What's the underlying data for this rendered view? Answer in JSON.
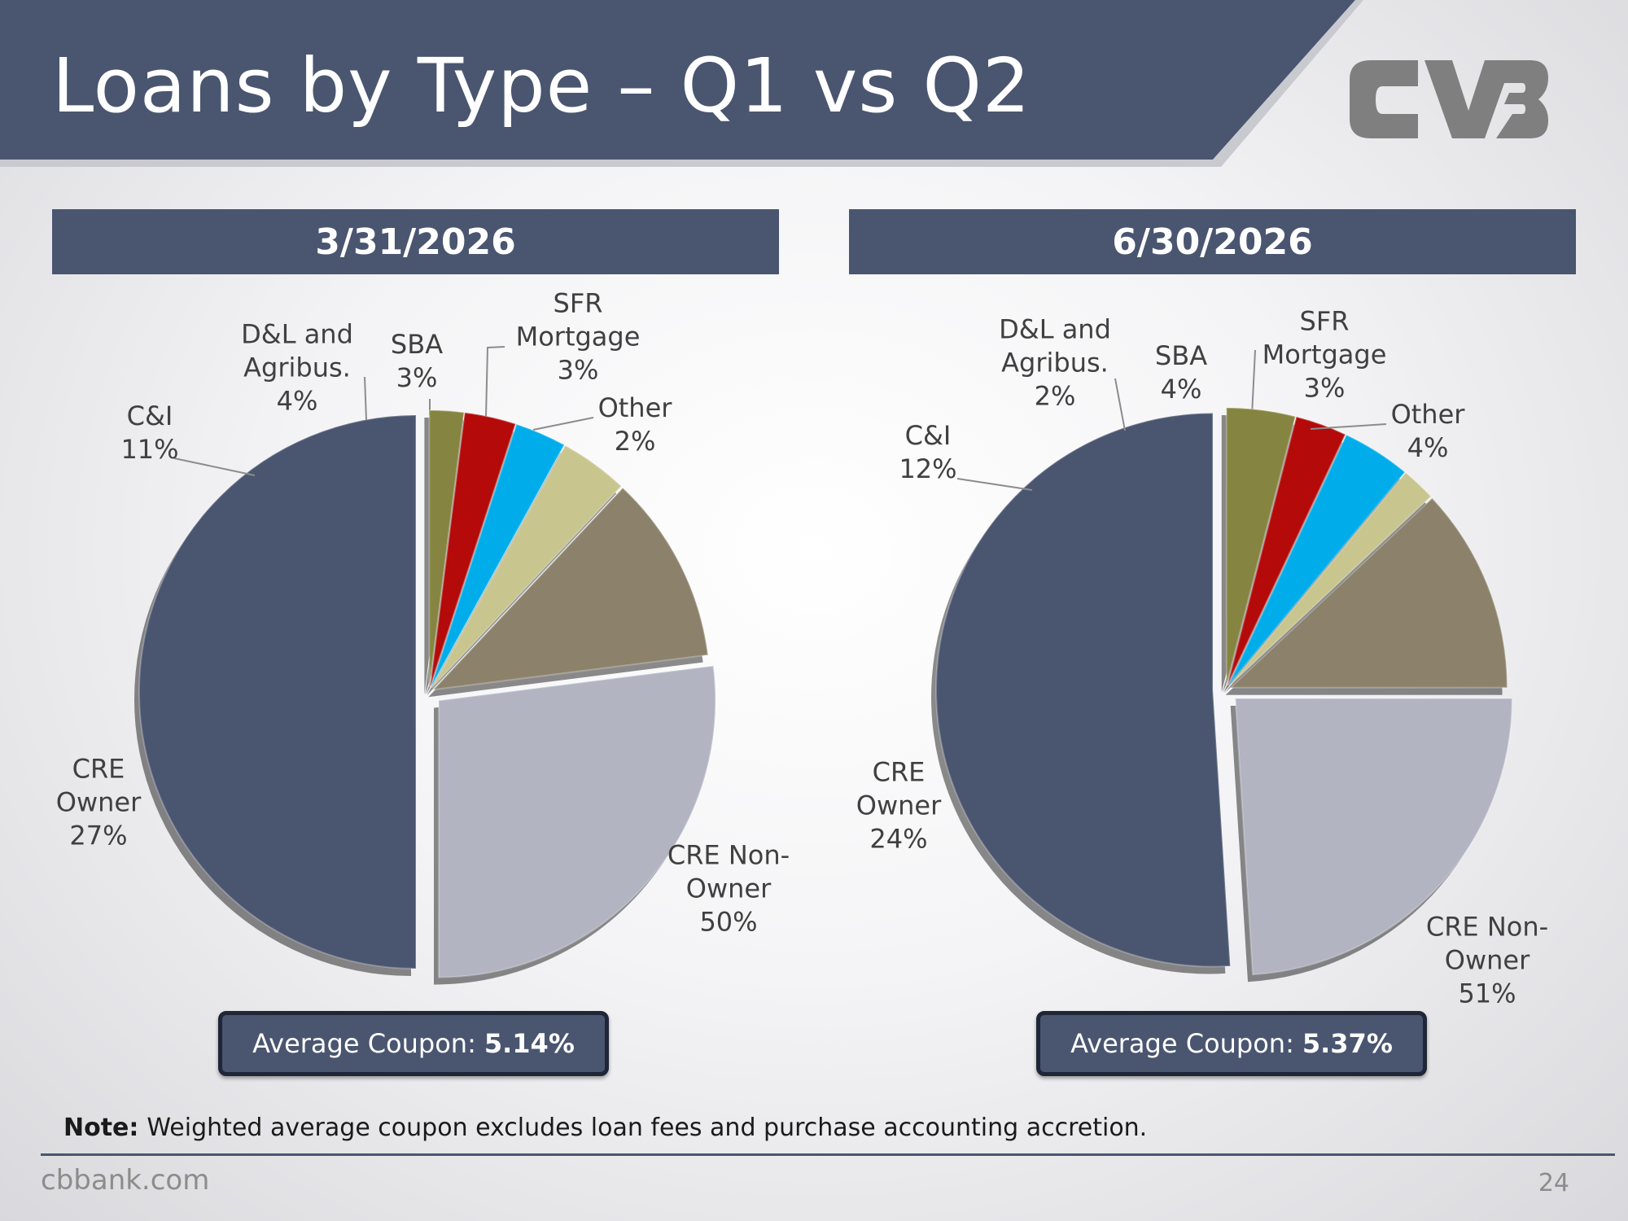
{
  "header": {
    "title": "Loans by Type – Q1 vs Q2"
  },
  "logo": {
    "name": "cvb-logo-mark",
    "color": "#7f7f7f"
  },
  "colors": {
    "header_band": "#4a5570",
    "cre_non_owner": "#4a5570",
    "cre_owner": "#b2b4c2",
    "c_and_i": "#8c826b",
    "dl_agribus": "#c9c58f",
    "sba": "#00adea",
    "sfr_mortgage": "#b40a0a",
    "other": "#858440"
  },
  "chart_data": [
    {
      "type": "pie",
      "title": "3/31/2026",
      "slices": [
        {
          "label": "CRE Non-Owner",
          "value": 50,
          "display": "CRE Non-\nOwner\n50%",
          "color": "#4a5570"
        },
        {
          "label": "CRE Owner",
          "value": 27,
          "display": "CRE\nOwner\n27%",
          "color": "#b2b4c2"
        },
        {
          "label": "C&I",
          "value": 11,
          "display": "C&I\n11%",
          "color": "#8c826b"
        },
        {
          "label": "D&L and Agribus.",
          "value": 4,
          "display": "D&L and\nAgribus.\n4%",
          "color": "#c9c58f"
        },
        {
          "label": "SBA",
          "value": 3,
          "display": "SBA\n3%",
          "color": "#00adea"
        },
        {
          "label": "SFR Mortgage",
          "value": 3,
          "display": "SFR\nMortgage\n3%",
          "color": "#b40a0a"
        },
        {
          "label": "Other",
          "value": 2,
          "display": "Other\n2%",
          "color": "#858440"
        }
      ],
      "average_coupon_label": "Average Coupon:",
      "average_coupon_value": "5.14%"
    },
    {
      "type": "pie",
      "title": "6/30/2026",
      "slices": [
        {
          "label": "CRE Non-Owner",
          "value": 51,
          "display": "CRE Non-\nOwner\n51%",
          "color": "#4a5570"
        },
        {
          "label": "CRE Owner",
          "value": 24,
          "display": "CRE\nOwner\n24%",
          "color": "#b2b4c2"
        },
        {
          "label": "C&I",
          "value": 12,
          "display": "C&I\n12%",
          "color": "#8c826b"
        },
        {
          "label": "D&L and Agribus.",
          "value": 2,
          "display": "D&L and\nAgribus.\n2%",
          "color": "#c9c58f"
        },
        {
          "label": "SBA",
          "value": 4,
          "display": "SBA\n4%",
          "color": "#00adea"
        },
        {
          "label": "SFR Mortgage",
          "value": 3,
          "display": "SFR\nMortgage\n3%",
          "color": "#b40a0a"
        },
        {
          "label": "Other",
          "value": 4,
          "display": "Other\n4%",
          "color": "#858440"
        }
      ],
      "average_coupon_label": "Average Coupon:",
      "average_coupon_value": "5.37%"
    }
  ],
  "note": {
    "label": "Note:",
    "text": "Weighted average coupon excludes loan fees and purchase accounting accretion."
  },
  "footer": {
    "site": "cbbank.com",
    "page": "24"
  }
}
